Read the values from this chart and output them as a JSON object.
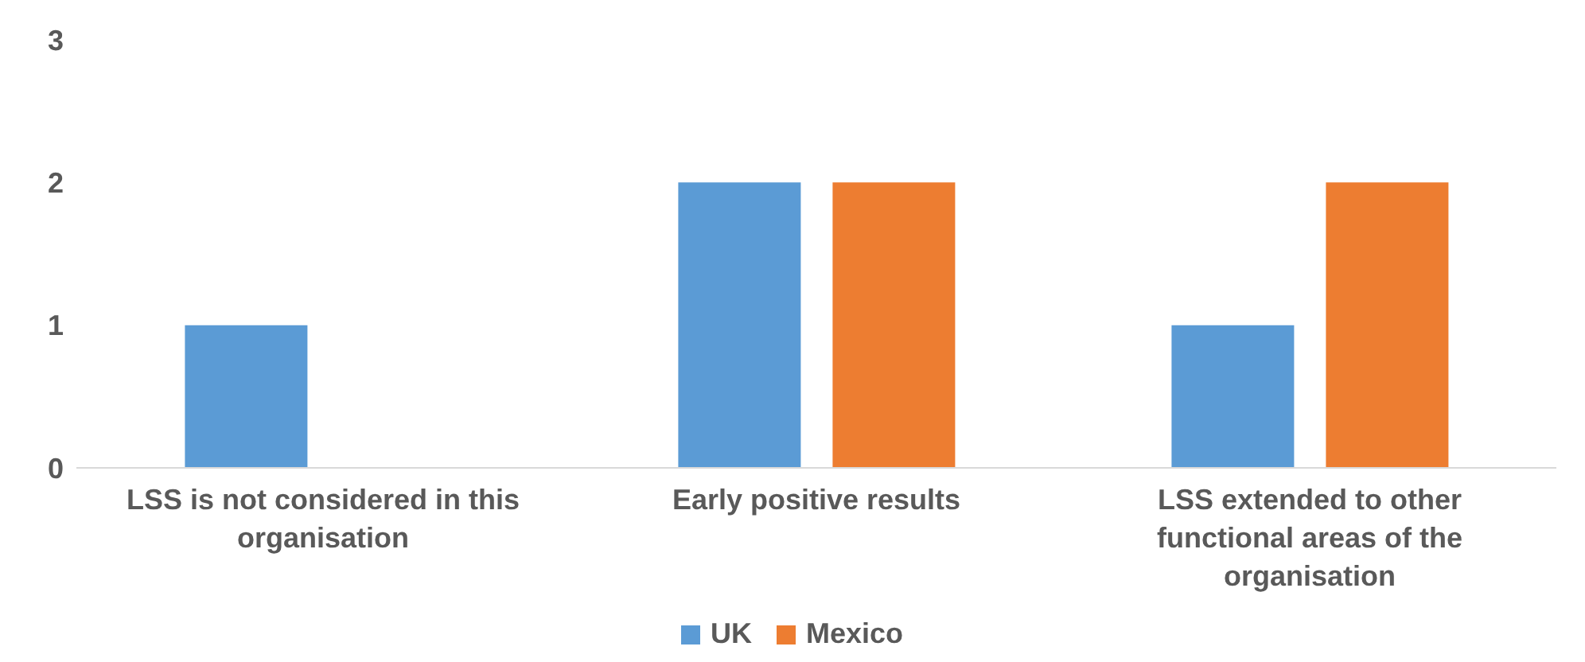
{
  "chart_data": {
    "type": "bar",
    "categories": [
      "LSS is not considered in this organisation",
      "Early positive results",
      "LSS extended to other functional areas of the organisation"
    ],
    "series": [
      {
        "name": "UK",
        "color": "#5b9bd5",
        "values": [
          1,
          2,
          1
        ]
      },
      {
        "name": "Mexico",
        "color": "#ed7d31",
        "values": [
          0,
          2,
          2
        ]
      }
    ],
    "ylim": [
      0,
      3
    ],
    "yticks": [
      0,
      1,
      2,
      3
    ],
    "grid": false,
    "legend": "bottom"
  }
}
